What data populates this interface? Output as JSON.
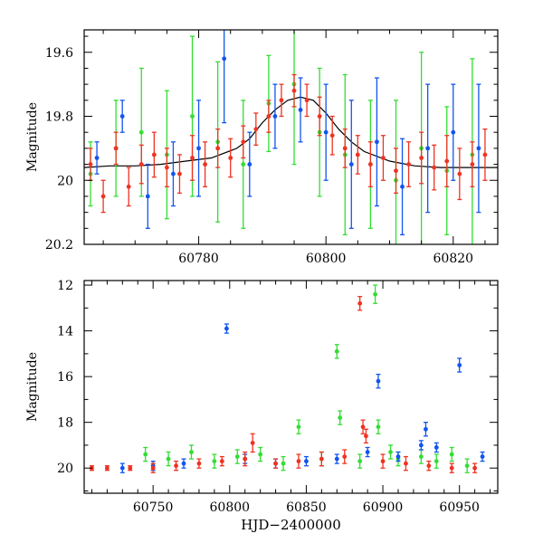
{
  "chart_data": [
    {
      "type": "scatter",
      "title": "",
      "xlabel": "",
      "ylabel": "Magnitude",
      "xlim": [
        60762,
        60827
      ],
      "ylim": [
        20.2,
        19.53
      ],
      "y_inverted": true,
      "xticks": [
        60780,
        60800,
        60820
      ],
      "yticks": [
        19.6,
        19.8,
        20,
        20.2
      ],
      "ytick_labels": [
        "19.6",
        "19.8",
        "20",
        "20.2"
      ],
      "model_curve": {
        "name": "model",
        "color": "#000000",
        "x": [
          60762,
          60766,
          60770,
          60774,
          60778,
          60782,
          60786,
          60788,
          60790,
          60792,
          60794,
          60796,
          60798,
          60800,
          60802,
          60804,
          60806,
          60810,
          60814,
          60818,
          60822,
          60827
        ],
        "y": [
          19.96,
          19.955,
          19.955,
          19.95,
          19.94,
          19.93,
          19.9,
          19.87,
          19.82,
          19.78,
          19.75,
          19.74,
          19.75,
          19.79,
          19.84,
          19.88,
          19.91,
          19.94,
          19.955,
          19.96,
          19.96,
          19.96
        ]
      },
      "series": [
        {
          "name": "green",
          "color": "#33dd33",
          "x": [
            60763,
            60767,
            60771,
            60775,
            60779,
            60783,
            60787,
            60791,
            60795,
            60799,
            60803,
            60807,
            60811,
            60815,
            60819,
            60823
          ],
          "y": [
            19.98,
            19.9,
            19.85,
            19.92,
            19.8,
            19.88,
            19.95,
            19.76,
            19.7,
            19.85,
            19.92,
            19.95,
            20.0,
            19.9,
            19.97,
            19.92
          ],
          "err": [
            0.1,
            0.15,
            0.2,
            0.2,
            0.25,
            0.25,
            0.2,
            0.15,
            0.25,
            0.2,
            0.25,
            0.2,
            0.25,
            0.3,
            0.2,
            0.3
          ]
        },
        {
          "name": "blue",
          "color": "#1155ee",
          "x": [
            60764,
            60768,
            60772,
            60776,
            60780,
            60784,
            60788,
            60792,
            60796,
            60800,
            60804,
            60808,
            60812,
            60816,
            60820,
            60824
          ],
          "y": [
            19.93,
            19.8,
            20.05,
            19.98,
            19.9,
            19.62,
            19.95,
            19.8,
            19.78,
            19.85,
            19.95,
            19.88,
            20.02,
            19.9,
            19.85,
            19.9
          ],
          "err": [
            0.05,
            0.05,
            0.1,
            0.1,
            0.15,
            0.2,
            0.1,
            0.1,
            0.1,
            0.15,
            0.2,
            0.2,
            0.15,
            0.2,
            0.15,
            0.2
          ]
        },
        {
          "name": "red",
          "color": "#ee3322",
          "x": [
            60763,
            60765,
            60767,
            60769,
            60771,
            60773,
            60775,
            60777,
            60779,
            60781,
            60783,
            60785,
            60787,
            60789,
            60791,
            60793,
            60795,
            60797,
            60799,
            60801,
            60803,
            60805,
            60807,
            60809,
            60811,
            60813,
            60815,
            60817,
            60819,
            60821,
            60823,
            60825
          ],
          "y": [
            19.95,
            20.05,
            19.9,
            20.02,
            19.95,
            19.92,
            19.96,
            19.98,
            19.93,
            19.95,
            19.9,
            19.93,
            19.88,
            19.84,
            19.8,
            19.75,
            19.72,
            19.75,
            19.8,
            19.86,
            19.9,
            19.92,
            19.95,
            19.93,
            19.97,
            19.95,
            19.93,
            19.96,
            19.94,
            19.98,
            19.95,
            19.92
          ],
          "err": [
            0.05,
            0.05,
            0.05,
            0.06,
            0.06,
            0.07,
            0.06,
            0.06,
            0.07,
            0.07,
            0.06,
            0.06,
            0.05,
            0.05,
            0.05,
            0.05,
            0.05,
            0.05,
            0.06,
            0.06,
            0.06,
            0.06,
            0.07,
            0.07,
            0.07,
            0.07,
            0.08,
            0.07,
            0.08,
            0.08,
            0.07,
            0.08
          ]
        }
      ]
    },
    {
      "type": "scatter",
      "title": "",
      "xlabel": "HJD−2400000",
      "ylabel": "Magnitude",
      "xlim": [
        60705,
        60975
      ],
      "ylim": [
        21.1,
        11.8
      ],
      "y_inverted": true,
      "xticks": [
        60750,
        60800,
        60850,
        60900,
        60950
      ],
      "yticks": [
        12,
        14,
        16,
        18,
        20
      ],
      "ytick_labels": [
        "12",
        "14",
        "16",
        "18",
        "20"
      ],
      "series": [
        {
          "name": "green",
          "color": "#33dd33",
          "x": [
            60745,
            60760,
            60775,
            60790,
            60805,
            60820,
            60835,
            60845,
            60860,
            60870,
            60872,
            60885,
            60895,
            60897,
            60905,
            60910,
            60925,
            60935,
            60945,
            60955
          ],
          "y": [
            19.4,
            19.6,
            19.3,
            19.7,
            19.5,
            19.4,
            19.8,
            18.2,
            19.6,
            14.9,
            17.8,
            19.7,
            12.4,
            18.2,
            19.3,
            19.6,
            19.5,
            19.7,
            19.4,
            19.9
          ],
          "err": [
            0.3,
            0.3,
            0.3,
            0.3,
            0.3,
            0.3,
            0.3,
            0.3,
            0.3,
            0.3,
            0.3,
            0.3,
            0.4,
            0.3,
            0.3,
            0.3,
            0.3,
            0.3,
            0.3,
            0.3
          ]
        },
        {
          "name": "blue",
          "color": "#1155ee",
          "x": [
            60730,
            60750,
            60770,
            60798,
            60810,
            60830,
            60850,
            60870,
            60890,
            60897,
            60910,
            60925,
            60928,
            60935,
            60950,
            60965
          ],
          "y": [
            20.0,
            19.9,
            19.8,
            13.9,
            19.6,
            19.8,
            19.7,
            19.6,
            19.3,
            16.2,
            19.5,
            19.0,
            18.3,
            19.1,
            15.5,
            19.5
          ],
          "err": [
            0.2,
            0.2,
            0.2,
            0.2,
            0.2,
            0.2,
            0.2,
            0.2,
            0.2,
            0.3,
            0.2,
            0.2,
            0.3,
            0.2,
            0.3,
            0.2
          ]
        },
        {
          "name": "red",
          "color": "#ee3322",
          "x": [
            60710,
            60720,
            60735,
            60750,
            60765,
            60780,
            60795,
            60810,
            60815,
            60830,
            60845,
            60860,
            60875,
            60885,
            60887,
            60889,
            60900,
            60915,
            60930,
            60945,
            60960
          ],
          "y": [
            20.0,
            20.0,
            20.0,
            20.0,
            19.9,
            19.8,
            19.7,
            19.6,
            18.9,
            19.8,
            19.7,
            19.6,
            19.5,
            12.8,
            18.2,
            18.6,
            19.7,
            19.8,
            19.9,
            20.0,
            20.0
          ],
          "err": [
            0.1,
            0.1,
            0.1,
            0.2,
            0.2,
            0.2,
            0.2,
            0.3,
            0.4,
            0.2,
            0.3,
            0.3,
            0.3,
            0.3,
            0.3,
            0.3,
            0.3,
            0.3,
            0.2,
            0.2,
            0.2
          ]
        }
      ]
    }
  ]
}
